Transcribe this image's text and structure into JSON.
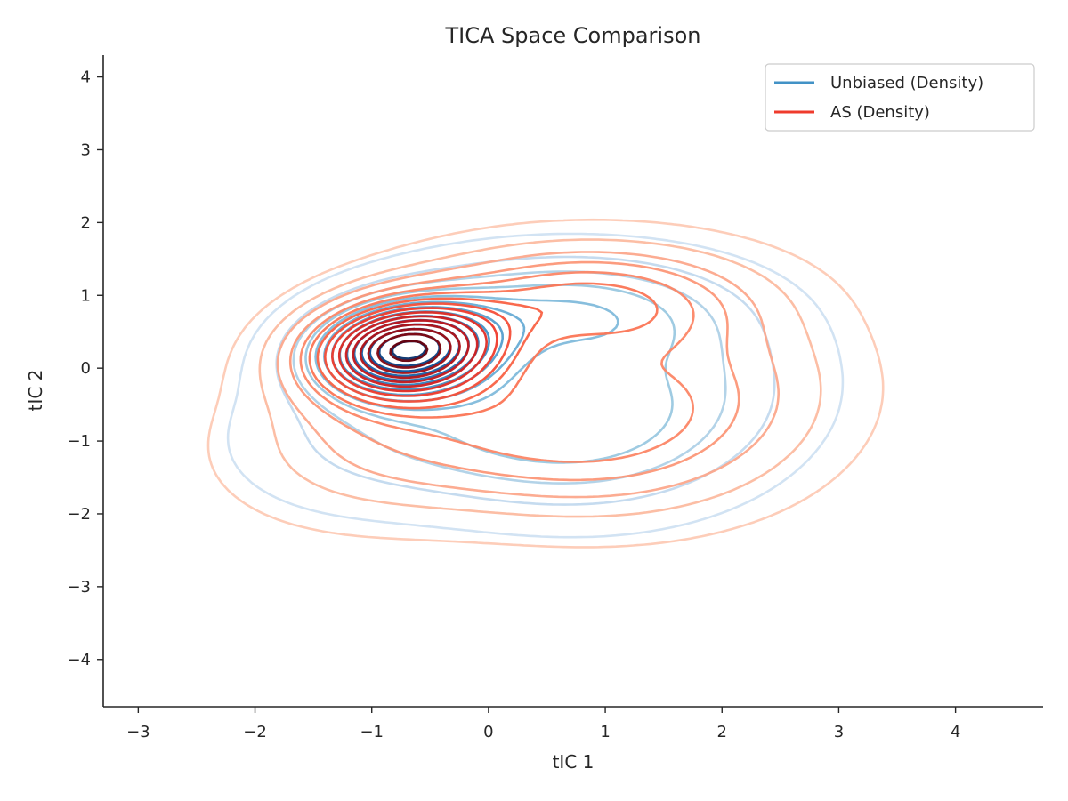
{
  "chart_data": {
    "type": "contour",
    "title": "TICA Space Comparison",
    "xlabel": "tIC 1",
    "ylabel": "tIC 2",
    "xlim": [
      -3.3,
      4.75
    ],
    "ylim": [
      -4.65,
      4.3
    ],
    "xticks": [
      -3,
      -2,
      -1,
      0,
      1,
      2,
      3,
      4
    ],
    "yticks": [
      -4,
      -3,
      -2,
      -1,
      0,
      1,
      2,
      3,
      4
    ],
    "xtick_labels": [
      "−3",
      "−2",
      "−1",
      "0",
      "1",
      "2",
      "3",
      "4"
    ],
    "ytick_labels": [
      "−4",
      "−3",
      "−2",
      "−1",
      "0",
      "1",
      "2",
      "3",
      "4"
    ],
    "grid": false,
    "legend_position": "top-right",
    "series": [
      {
        "name": "Unbiased (Density)",
        "legend_color": "#4292c6",
        "colormap": "Blues",
        "components": [
          {
            "weight": 1.0,
            "mean": [
              -0.72,
              0.25
            ],
            "sd": [
              0.5,
              0.42
            ],
            "rho": 0.1
          },
          {
            "weight": 0.32,
            "mean": [
              0.6,
              0.8
            ],
            "sd": [
              0.9,
              0.5
            ],
            "rho": 0.0
          },
          {
            "weight": 0.28,
            "mean": [
              0.5,
              -0.9
            ],
            "sd": [
              0.9,
              0.7
            ],
            "rho": -0.1
          },
          {
            "weight": 0.18,
            "mean": [
              1.6,
              -0.2
            ],
            "sd": [
              0.8,
              0.8
            ],
            "rho": 0.0
          },
          {
            "weight": 0.12,
            "mean": [
              -1.0,
              -0.9
            ],
            "sd": [
              0.8,
              0.7
            ],
            "rho": 0.1
          }
        ],
        "levels": 14
      },
      {
        "name": "AS (Density)",
        "legend_color": "#ef3b2c",
        "colormap": "Reds",
        "components": [
          {
            "weight": 1.0,
            "mean": [
              -0.72,
              0.25
            ],
            "sd": [
              0.55,
              0.46
            ],
            "rho": 0.1
          },
          {
            "weight": 0.38,
            "mean": [
              0.8,
              0.95
            ],
            "sd": [
              0.9,
              0.5
            ],
            "rho": 0.0
          },
          {
            "weight": 0.3,
            "mean": [
              0.6,
              -0.9
            ],
            "sd": [
              1.0,
              0.75
            ],
            "rho": -0.1
          },
          {
            "weight": 0.2,
            "mean": [
              1.8,
              -0.2
            ],
            "sd": [
              0.85,
              0.85
            ],
            "rho": 0.0
          },
          {
            "weight": 0.14,
            "mean": [
              -1.0,
              -1.0
            ],
            "sd": [
              0.85,
              0.75
            ],
            "rho": 0.1
          }
        ],
        "levels": 16
      }
    ]
  }
}
